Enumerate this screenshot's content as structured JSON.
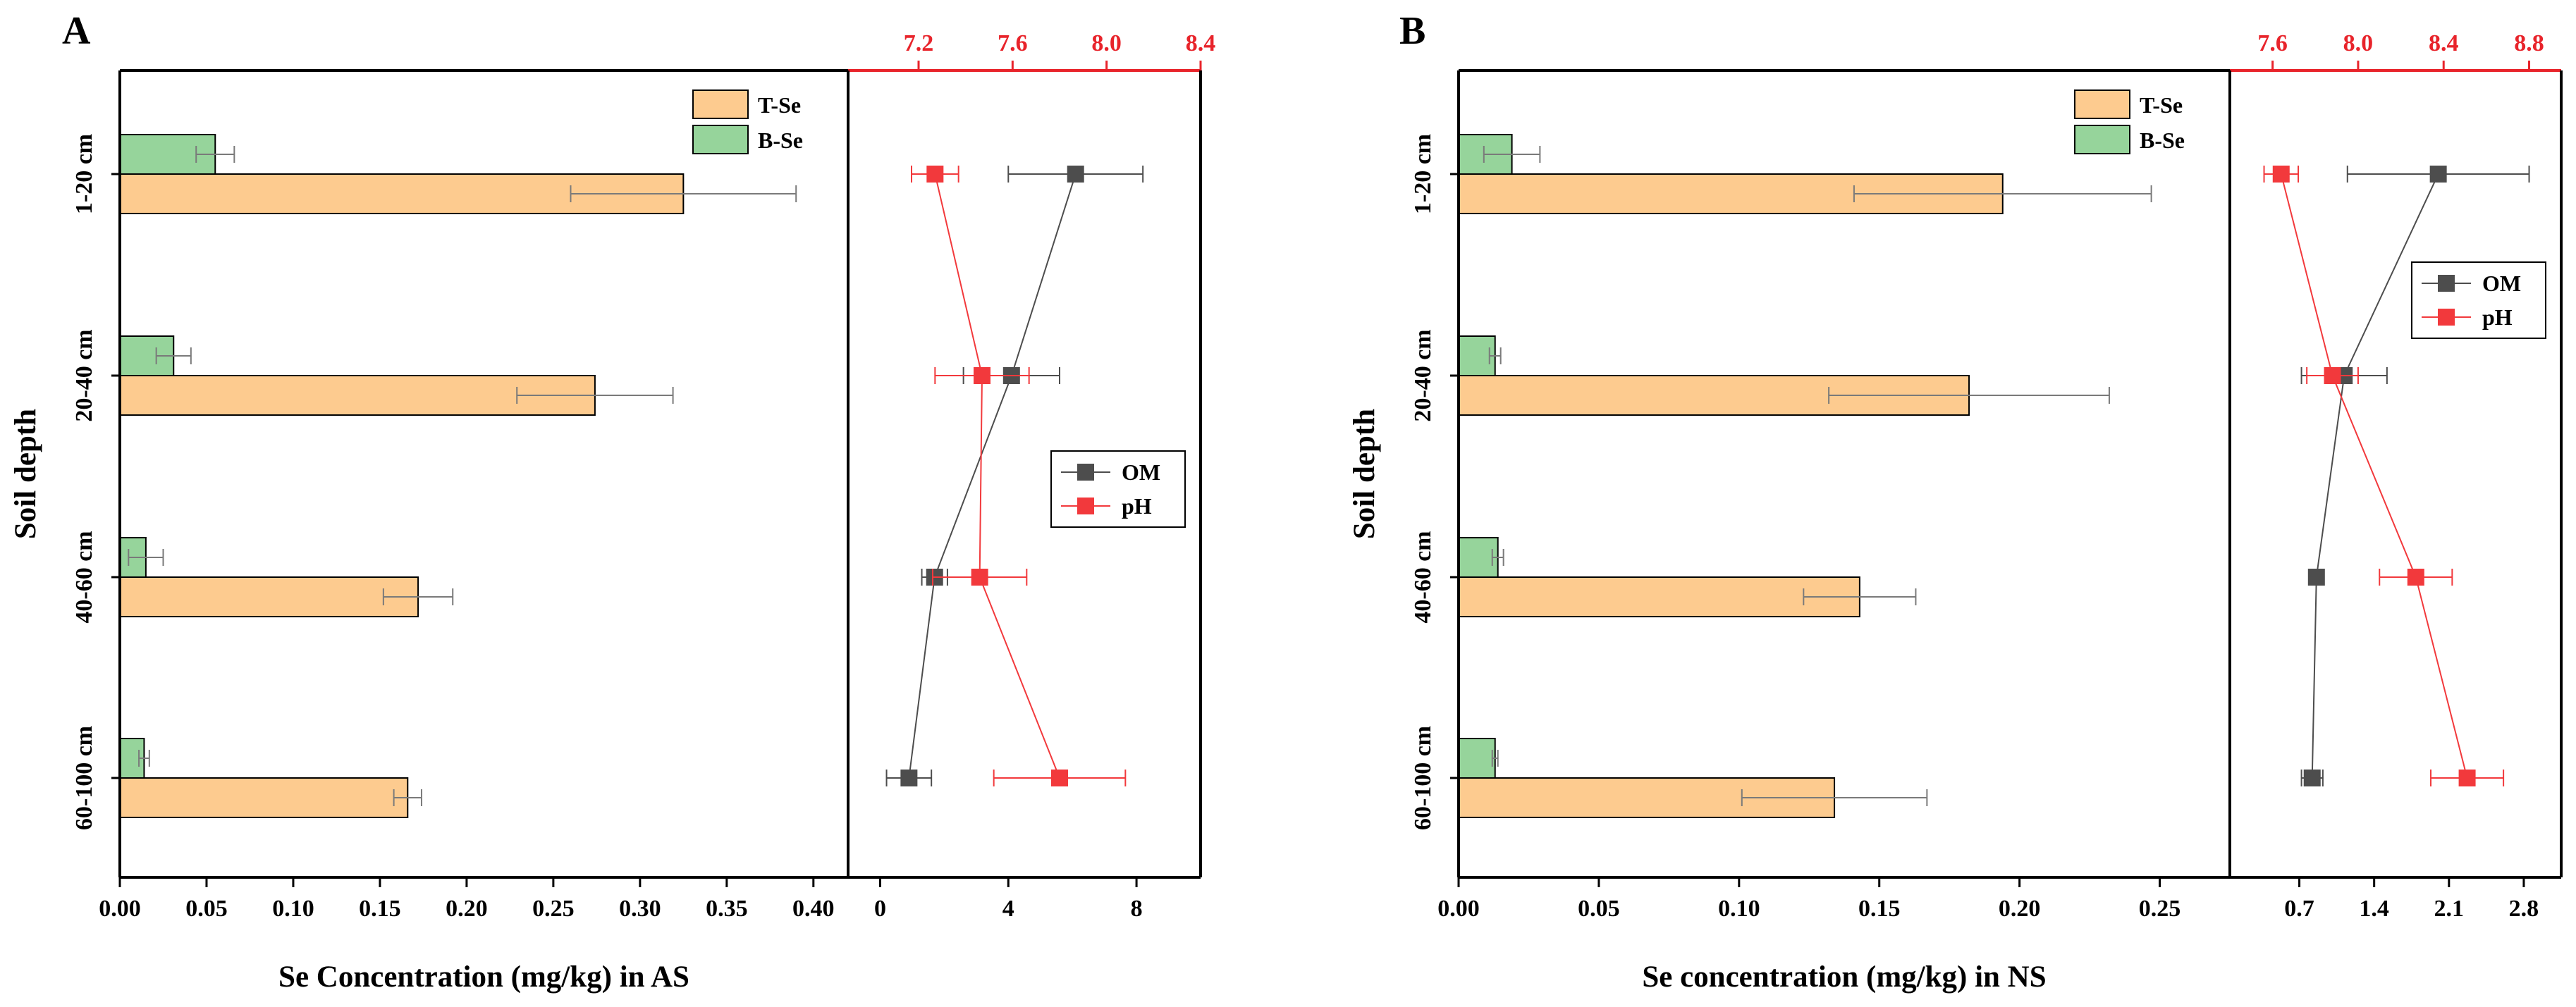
{
  "colors": {
    "t_se_fill": "#fdcb8f",
    "b_se_fill": "#96d49b",
    "om": "#4d4d4d",
    "ph": "#f2393c",
    "red_axis": "#e8242b",
    "frame": "#000000",
    "errorbar": "#7a7a7a"
  },
  "chart_data": [
    {
      "panel": "A",
      "type": "bar",
      "orientation": "horizontal",
      "title": "",
      "xlabel": "Se Concentration (mg/kg) in AS",
      "ylabel": "Soil depth",
      "categories": [
        "1-20 cm",
        "20-40 cm",
        "40-60 cm",
        "60-100 cm"
      ],
      "xlim": [
        0,
        0.42
      ],
      "xticks": [
        "0.00",
        "0.05",
        "0.10",
        "0.15",
        "0.20",
        "0.25",
        "0.30",
        "0.35",
        "0.40"
      ],
      "series": [
        {
          "name": "T-Se",
          "values": [
            0.325,
            0.274,
            0.172,
            0.166
          ],
          "errors": [
            0.065,
            0.045,
            0.02,
            0.008
          ]
        },
        {
          "name": "B-Se",
          "values": [
            0.055,
            0.031,
            0.015,
            0.014
          ],
          "errors": [
            0.011,
            0.01,
            0.01,
            0.003
          ]
        }
      ],
      "legend": {
        "entries": [
          "T-Se",
          "B-Se"
        ],
        "position": "top-right"
      },
      "side_panel": {
        "type": "line",
        "om": {
          "name": "OM",
          "axis": "bottom",
          "xlim": [
            -1,
            10
          ],
          "xticks": [
            "0",
            "4",
            "8"
          ],
          "values": [
            6.1,
            4.1,
            1.7,
            0.9
          ],
          "errors": [
            2.1,
            1.5,
            0.4,
            0.7
          ]
        },
        "ph": {
          "name": "pH",
          "axis": "top",
          "xlim": [
            6.9,
            8.4
          ],
          "xticks": [
            "7.2",
            "7.6",
            "8.0",
            "8.4"
          ],
          "values": [
            7.27,
            7.47,
            7.46,
            7.8
          ],
          "errors": [
            0.1,
            0.2,
            0.2,
            0.28
          ]
        },
        "legend": {
          "entries": [
            "OM",
            "pH"
          ],
          "position": "middle-right"
        }
      }
    },
    {
      "panel": "B",
      "type": "bar",
      "orientation": "horizontal",
      "title": "",
      "xlabel": "Se concentration (mg/kg) in NS",
      "ylabel": "Soil depth",
      "categories": [
        "1-20 cm",
        "20-40 cm",
        "40-60 cm",
        "60-100 cm"
      ],
      "xlim": [
        0,
        0.275
      ],
      "xticks": [
        "0.00",
        "0.05",
        "0.10",
        "0.15",
        "0.20",
        "0.25"
      ],
      "series": [
        {
          "name": "T-Se",
          "values": [
            0.194,
            0.182,
            0.143,
            0.134
          ],
          "errors": [
            0.053,
            0.05,
            0.02,
            0.033
          ]
        },
        {
          "name": "B-Se",
          "values": [
            0.019,
            0.013,
            0.014,
            0.013
          ],
          "errors": [
            0.01,
            0.002,
            0.002,
            0.001
          ]
        }
      ],
      "legend": {
        "entries": [
          "T-Se",
          "B-Se"
        ],
        "position": "top-right"
      },
      "side_panel": {
        "type": "line",
        "om": {
          "name": "OM",
          "axis": "bottom",
          "xlim": [
            0.05,
            3.15
          ],
          "xticks": [
            "0.7",
            "1.4",
            "2.1",
            "2.8"
          ],
          "values": [
            2.0,
            1.12,
            0.86,
            0.82
          ],
          "errors": [
            0.85,
            0.4,
            0.06,
            0.1
          ]
        },
        "ph": {
          "name": "pH",
          "axis": "top",
          "xlim": [
            7.4,
            8.95
          ],
          "xticks": [
            "7.6",
            "8.0",
            "8.4",
            "8.8"
          ],
          "values": [
            7.64,
            7.88,
            8.27,
            8.51
          ],
          "errors": [
            0.08,
            0.12,
            0.17,
            0.17
          ]
        },
        "legend": {
          "entries": [
            "OM",
            "pH"
          ],
          "position": "top-right"
        }
      }
    }
  ]
}
